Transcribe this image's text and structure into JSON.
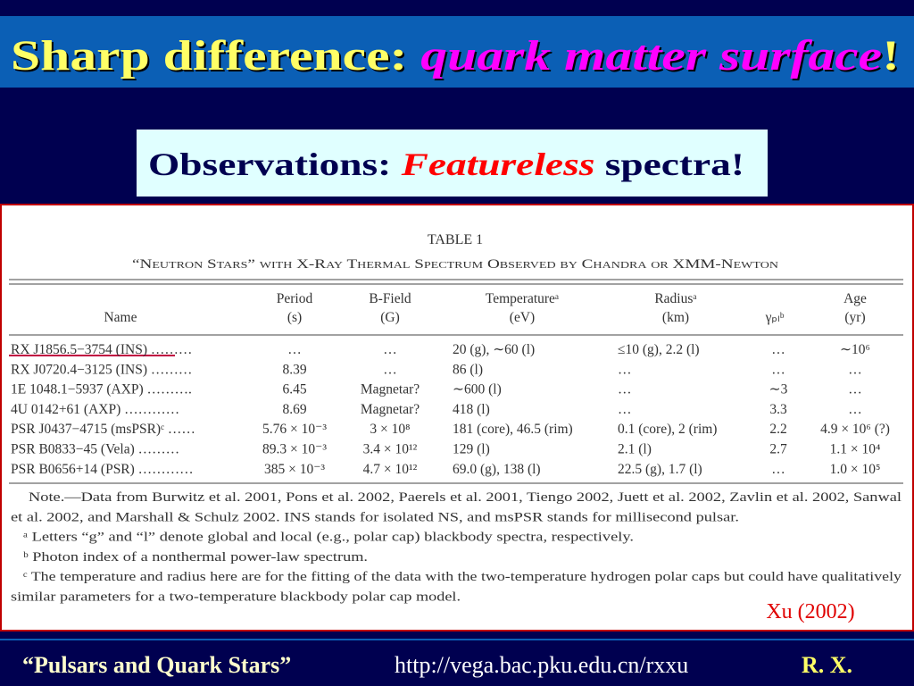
{
  "title": {
    "lead": "Sharp difference: ",
    "emphasis": "quark matter surface",
    "end": "!"
  },
  "subtitle": {
    "lead": "Observations: ",
    "emphasis": "Featureless",
    "end": " spectra!"
  },
  "table": {
    "label": "TABLE 1",
    "caption": "“Neutron Stars” with X-Ray Thermal Spectrum Observed by Chandra or XMM-Newton",
    "headers": [
      [
        "Name"
      ],
      [
        "Period",
        "(s)"
      ],
      [
        "B-Field",
        "(G)"
      ],
      [
        "Temperatureᵃ",
        "(eV)"
      ],
      [
        "Radiusᵃ",
        "(km)"
      ],
      [
        "γₚₗᵇ"
      ],
      [
        "Age",
        "(yr)"
      ]
    ],
    "rows": [
      [
        "RX J1856.5−3754 (INS) ………",
        "…",
        "…",
        "20 (g), ∼60 (l)",
        "≤10 (g), 2.2 (l)",
        "…",
        "∼10⁶"
      ],
      [
        "RX J0720.4−3125 (INS) ………",
        "8.39",
        "…",
        "86 (l)",
        "…",
        "…",
        "…"
      ],
      [
        "1E 1048.1−5937 (AXP) ……….",
        "6.45",
        "Magnetar?",
        "∼600 (l)",
        "…",
        "∼3",
        "…"
      ],
      [
        "4U 0142+61 (AXP) …………",
        "8.69",
        "Magnetar?",
        "418 (l)",
        "…",
        "3.3",
        "…"
      ],
      [
        "PSR J0437−4715 (msPSR)ᶜ ……",
        "5.76 × 10⁻³",
        "3 × 10⁸",
        "181 (core), 46.5 (rim)",
        "0.1 (core), 2 (rim)",
        "2.2",
        "4.9 × 10⁶ (?)"
      ],
      [
        "PSR B0833−45 (Vela) ………",
        "89.3 × 10⁻³",
        "3.4 × 10¹²",
        "129 (l)",
        "2.1 (l)",
        "2.7",
        "1.1 × 10⁴"
      ],
      [
        "PSR B0656+14 (PSR) …………",
        "385 × 10⁻³",
        "4.7 × 10¹²",
        "69.0 (g), 138 (l)",
        "22.5 (g), 1.7 (l)",
        "…",
        "1.0 × 10⁵"
      ]
    ],
    "notes": [
      "Note.—Data from Burwitz et al. 2001, Pons et al. 2002, Paerels et al. 2001, Tiengo 2002, Juett et al. 2002, Zavlin et al. 2002, Sanwal",
      "et al. 2002, and Marshall & Schulz 2002. INS stands for isolated NS, and msPSR stands for millisecond pulsar.",
      "ᵃ Letters “g” and “l” denote global and local (e.g., polar cap) blackbody spectra, respectively.",
      "ᵇ Photon index of a nonthermal power-law spectrum.",
      "ᶜ The temperature and radius here are for the fitting of the data with the two-temperature hydrogen polar caps but could have qualitatively",
      "similar parameters for a two-temperature blackbody polar cap model."
    ]
  },
  "credit": "Xu (2002)",
  "footer": {
    "quote": "“Pulsars and Quark Stars”",
    "url": "http://vega.bac.pku.edu.cn/rxxu",
    "author": "R. X."
  }
}
